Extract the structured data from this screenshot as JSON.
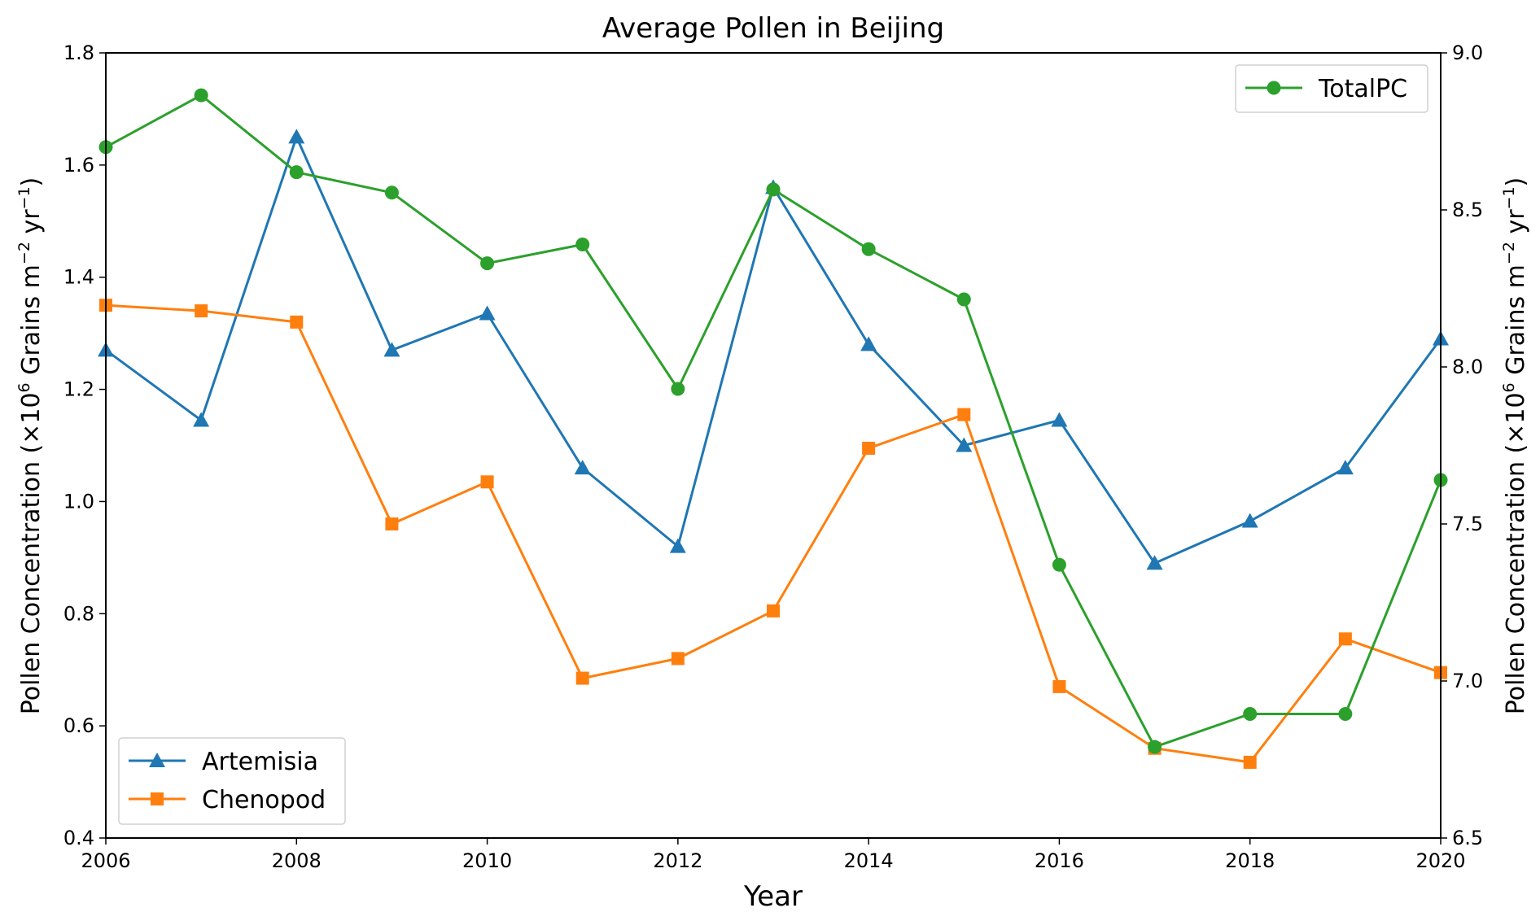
{
  "chart_data": {
    "type": "line",
    "title": "Average Pollen in Beijing",
    "xlabel": "Year",
    "ylabel_left": {
      "prefix": "Pollen Concentration (×10",
      "exp1": "6",
      "mid1": " Grains m",
      "exp2": "−2",
      "mid2": " yr",
      "exp3": "−1",
      "suffix": ")"
    },
    "ylabel_right": {
      "prefix": "Pollen Concentration (×10",
      "exp1": "6",
      "mid1": " Grains m",
      "exp2": "−2",
      "mid2": " yr",
      "exp3": "−1",
      "suffix": ")"
    },
    "xlim": [
      2006,
      2020
    ],
    "ylim_left": [
      0.4,
      1.8
    ],
    "ylim_right": [
      6.5,
      9.0
    ],
    "x_ticks": [
      "2006",
      "2008",
      "2010",
      "2012",
      "2014",
      "2016",
      "2018",
      "2020"
    ],
    "y_left_ticks": [
      "0.4",
      "0.6",
      "0.8",
      "1.0",
      "1.2",
      "1.4",
      "1.6",
      "1.8"
    ],
    "y_right_ticks": [
      "6.5",
      "7.0",
      "7.5",
      "8.0",
      "8.5",
      "9.0"
    ],
    "x": [
      2006,
      2007,
      2008,
      2009,
      2010,
      2011,
      2012,
      2013,
      2014,
      2015,
      2016,
      2017,
      2018,
      2019,
      2020
    ],
    "series": [
      {
        "name": "Artemisia",
        "axis": "left",
        "marker": "triangle",
        "color": "#1f77b4",
        "values": [
          1.27,
          1.145,
          1.65,
          1.27,
          1.335,
          1.06,
          0.92,
          1.56,
          1.28,
          1.1,
          1.145,
          0.89,
          0.965,
          1.06,
          1.29
        ]
      },
      {
        "name": "Chenopod",
        "axis": "left",
        "marker": "square",
        "color": "#ff7f0e",
        "values": [
          1.35,
          1.34,
          1.32,
          0.96,
          1.035,
          0.685,
          0.72,
          0.805,
          1.095,
          1.155,
          0.67,
          0.56,
          0.535,
          0.755,
          0.695
        ]
      },
      {
        "name": "TotalPC",
        "axis": "right",
        "marker": "circle",
        "color": "#2ca02c",
        "values": [
          8.7,
          8.865,
          8.62,
          8.555,
          8.33,
          8.39,
          7.93,
          8.565,
          8.375,
          8.215,
          7.37,
          6.79,
          6.895,
          6.895,
          7.64
        ]
      }
    ],
    "legend_left": {
      "placement": "lower-left",
      "entries": [
        "Artemisia",
        "Chenopod"
      ]
    },
    "legend_right": {
      "placement": "upper-right",
      "entries": [
        "TotalPC"
      ]
    },
    "grid": false
  }
}
